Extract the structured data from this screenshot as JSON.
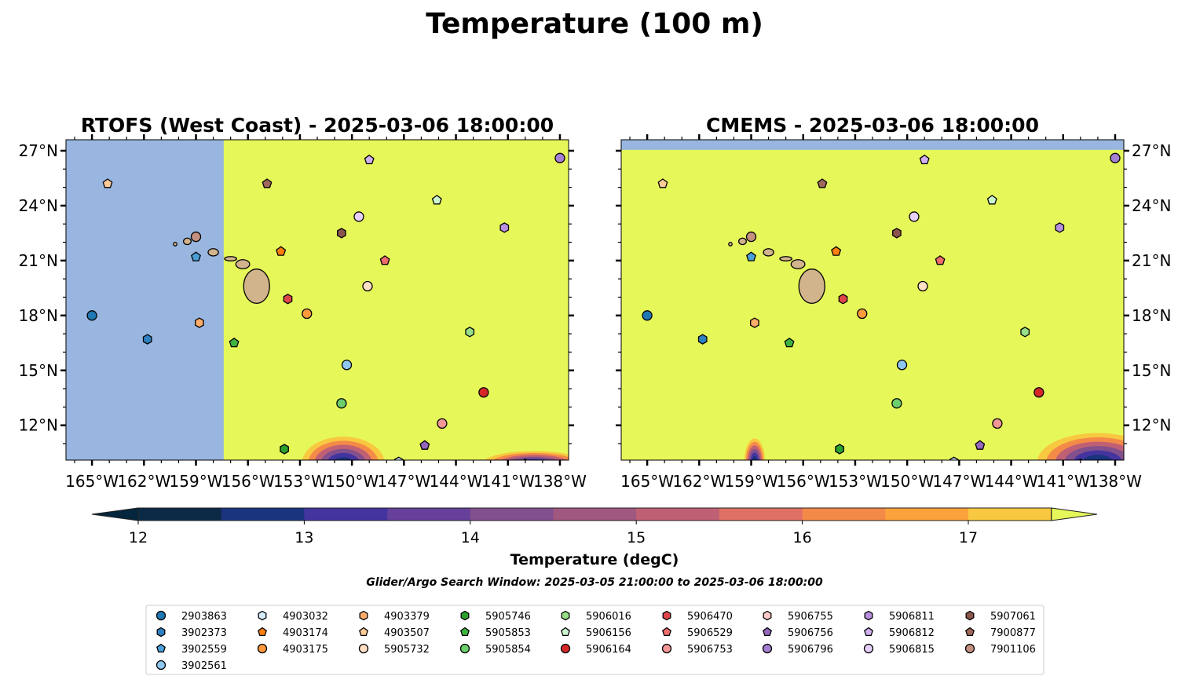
{
  "chart_data": {
    "type": "heatmap",
    "title": "Temperature (100 m)",
    "panels": [
      {
        "title": "RTOFS (West Coast) - 2025-03-06 18:00:00",
        "missing_west_of_lon": -157.4
      },
      {
        "title": "CMEMS - 2025-03-06 18:00:00",
        "missing_north_of_lat": 27.05
      }
    ],
    "xlim": [
      -166.5,
      -137.5
    ],
    "ylim": [
      10.1,
      27.6
    ],
    "xticks": [
      -165,
      -162,
      -159,
      -156,
      -153,
      -150,
      -147,
      -144,
      -141,
      -138
    ],
    "xtick_labels": [
      "165°W",
      "162°W",
      "159°W",
      "156°W",
      "153°W",
      "150°W",
      "147°W",
      "144°W",
      "141°W",
      "138°W"
    ],
    "yticks": [
      12,
      15,
      18,
      21,
      24,
      27
    ],
    "ytick_labels": [
      "12°N",
      "15°N",
      "18°N",
      "21°N",
      "24°N",
      "27°N"
    ],
    "colorbar": {
      "label": "Temperature (degC)",
      "range": [
        12,
        17.5
      ],
      "step": 0.5,
      "ticks": [
        12,
        13,
        14,
        15,
        16,
        17
      ],
      "tick_labels": [
        "12",
        "13",
        "14",
        "15",
        "16",
        "17"
      ],
      "colors": [
        "#0b2a45",
        "#1b347f",
        "#4434a0",
        "#66409a",
        "#82508c",
        "#a05880",
        "#c06074",
        "#e07066",
        "#f48a48",
        "#fca23a",
        "#f8c840"
      ],
      "under_color": "#04263c",
      "over_color": "#e6f75a"
    },
    "subtitle": "Glider/Argo Search Window: 2025-03-05 21:00:00 to 2025-03-06 18:00:00",
    "land_color": "#d2b48c",
    "nodata_color": "#98b6e0",
    "legend_placement": "bottom",
    "floats": [
      {
        "id": "2903863",
        "marker": "circle",
        "color": "#1f77b4",
        "lon": -165.0,
        "lat": 18.0
      },
      {
        "id": "3902373",
        "marker": "hexagon",
        "color": "#2f80c0",
        "lon": -161.8,
        "lat": 16.7
      },
      {
        "id": "3902559",
        "marker": "pentagon",
        "color": "#4a9fd8",
        "lon": -159.0,
        "lat": 21.2
      },
      {
        "id": "3902561",
        "marker": "circle",
        "color": "#8ec7ef",
        "lon": -150.3,
        "lat": 15.3
      },
      {
        "id": "4903032",
        "marker": "hexagon",
        "color": "#d4ecfb",
        "lon": -147.3,
        "lat": 10.0
      },
      {
        "id": "4903174",
        "marker": "pentagon",
        "color": "#ff7f0e",
        "lon": -154.1,
        "lat": 21.5
      },
      {
        "id": "4903175",
        "marker": "circle",
        "color": "#ff9a3c",
        "lon": -152.6,
        "lat": 18.1
      },
      {
        "id": "4903379",
        "marker": "hexagon",
        "color": "#ffac6a",
        "lon": -158.8,
        "lat": 17.6
      },
      {
        "id": "4903507",
        "marker": "pentagon",
        "color": "#ffcc99",
        "lon": -164.1,
        "lat": 25.2
      },
      {
        "id": "5905732",
        "marker": "circle",
        "color": "#ffe0c4",
        "lon": -149.1,
        "lat": 19.6
      },
      {
        "id": "5905746",
        "marker": "hexagon",
        "color": "#2ca02c",
        "lon": -153.9,
        "lat": 10.7
      },
      {
        "id": "5905853",
        "marker": "pentagon",
        "color": "#3fb33f",
        "lon": -156.8,
        "lat": 16.5
      },
      {
        "id": "5905854",
        "marker": "circle",
        "color": "#6ccf6c",
        "lon": -150.6,
        "lat": 13.2
      },
      {
        "id": "5906016",
        "marker": "hexagon",
        "color": "#98df8a",
        "lon": -143.2,
        "lat": 17.1
      },
      {
        "id": "5906156",
        "marker": "pentagon",
        "color": "#ccf5d0",
        "lon": -145.1,
        "lat": 24.3
      },
      {
        "id": "5906164",
        "marker": "circle",
        "color": "#d62728",
        "lon": -142.4,
        "lat": 13.8
      },
      {
        "id": "5906470",
        "marker": "hexagon",
        "color": "#e04548",
        "lon": -153.7,
        "lat": 18.9
      },
      {
        "id": "5906529",
        "marker": "pentagon",
        "color": "#ee6d6d",
        "lon": -148.1,
        "lat": 21.0
      },
      {
        "id": "5906753",
        "marker": "circle",
        "color": "#f29696",
        "lon": -144.8,
        "lat": 12.1
      },
      {
        "id": "5906755",
        "marker": "hexagon",
        "color": "#fcc8c8",
        "lon": -140.0,
        "lat": 9.9
      },
      {
        "id": "5906756",
        "marker": "pentagon",
        "color": "#9467bd",
        "lon": -145.8,
        "lat": 10.9
      },
      {
        "id": "5906796",
        "marker": "circle",
        "color": "#a57fd1",
        "lon": -138.0,
        "lat": 26.6
      },
      {
        "id": "5906811",
        "marker": "hexagon",
        "color": "#b890e0",
        "lon": -141.2,
        "lat": 22.8
      },
      {
        "id": "5906812",
        "marker": "pentagon",
        "color": "#d0b0f0",
        "lon": -149.0,
        "lat": 26.5
      },
      {
        "id": "5906815",
        "marker": "circle",
        "color": "#e6d0fa",
        "lon": -149.6,
        "lat": 23.4
      },
      {
        "id": "5907061",
        "marker": "hexagon",
        "color": "#8c564b",
        "lon": -150.6,
        "lat": 22.5
      },
      {
        "id": "7900877",
        "marker": "pentagon",
        "color": "#a0685c",
        "lon": -154.9,
        "lat": 25.2
      },
      {
        "id": "7901106",
        "marker": "circle",
        "color": "#c49080",
        "lon": -159.0,
        "lat": 22.3
      }
    ]
  }
}
